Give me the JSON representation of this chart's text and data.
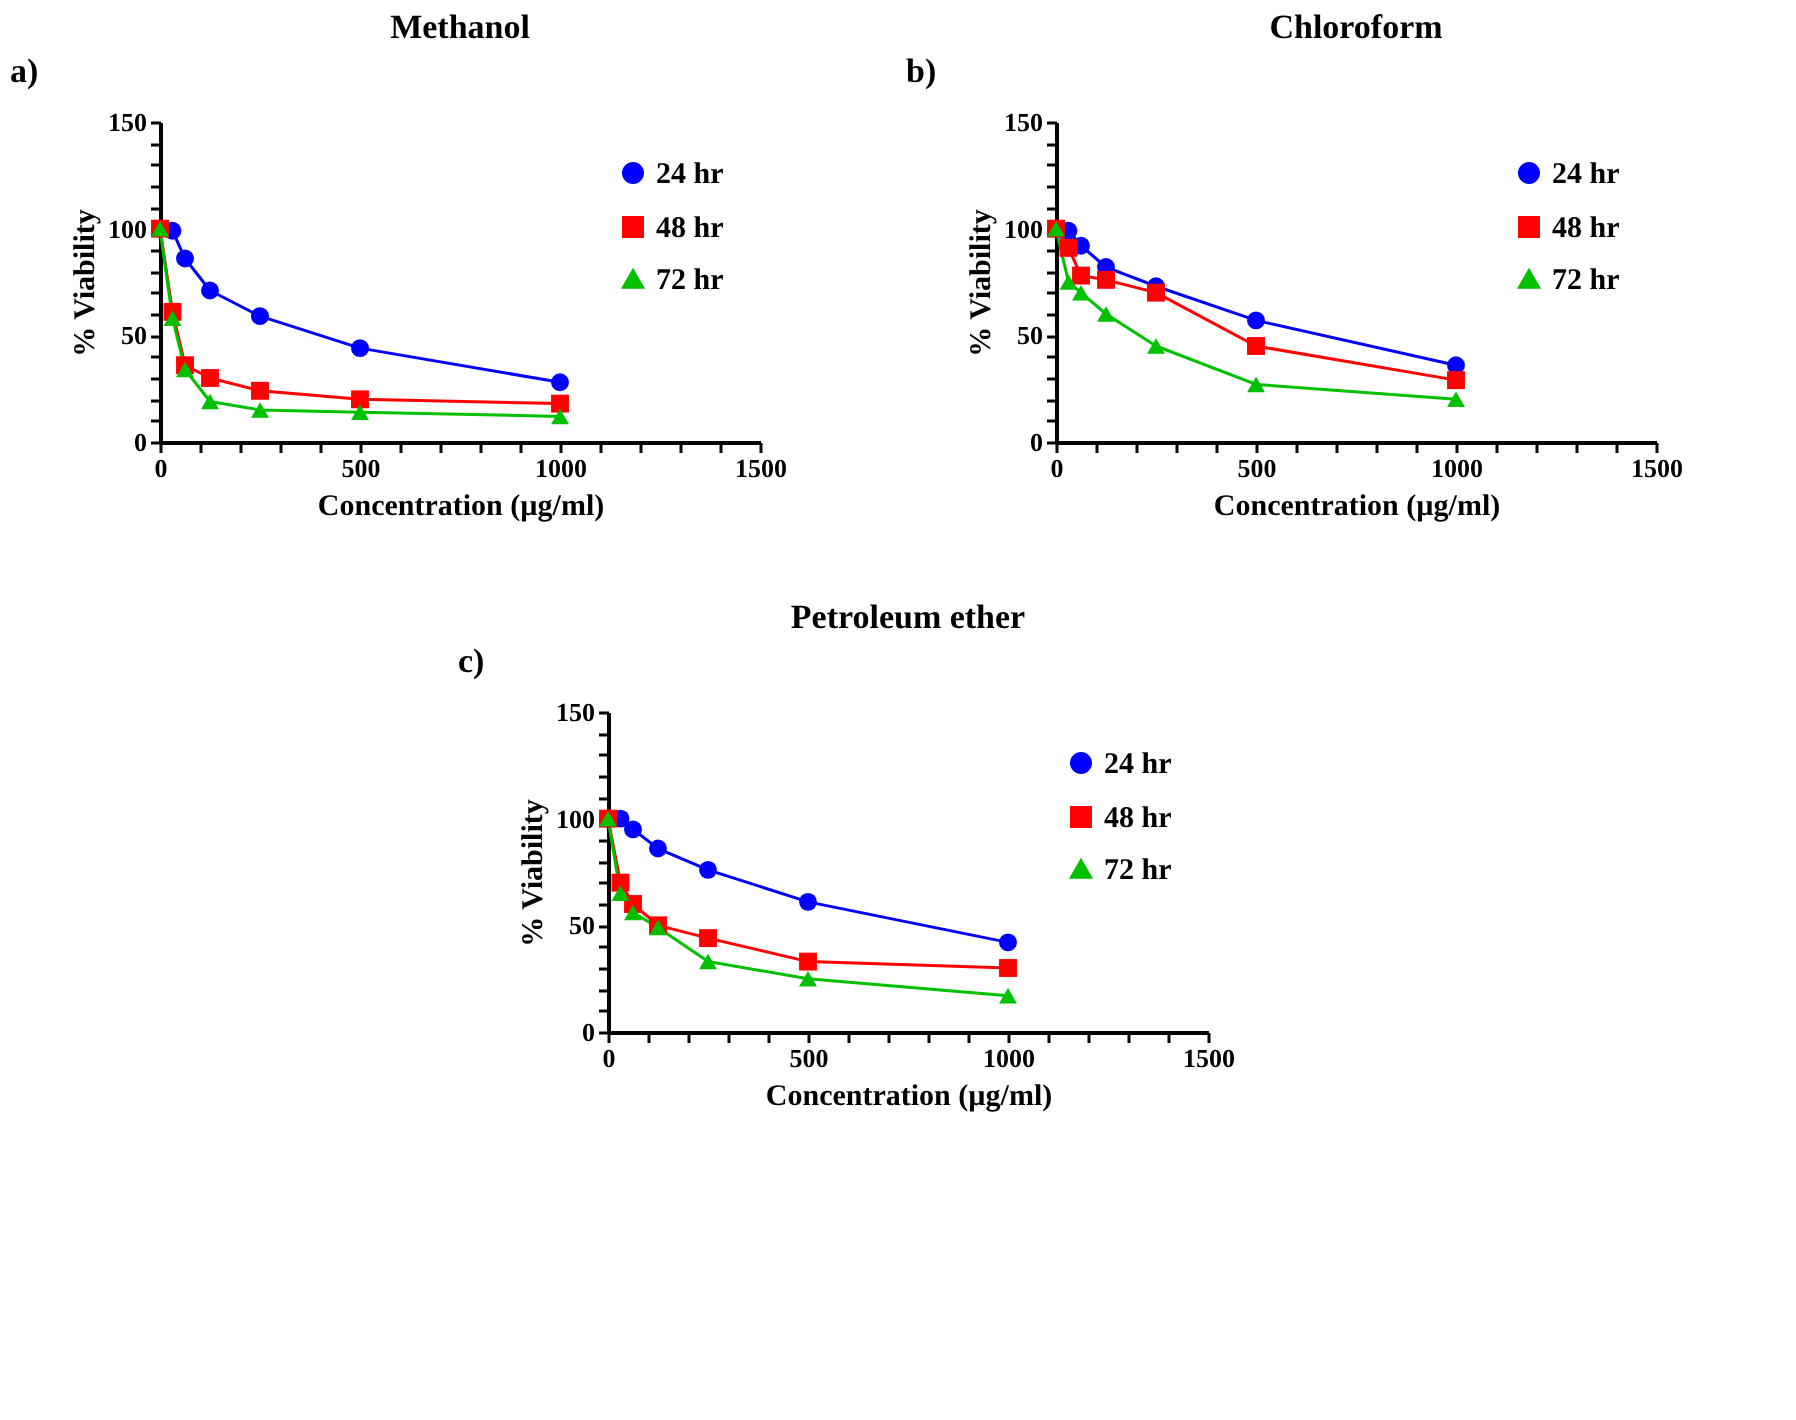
{
  "chart_data": [
    {
      "type": "line",
      "title": "Methanol",
      "xlabel": "Concentration (µg/ml)",
      "ylabel": "% Viability",
      "annotations": [
        "a)"
      ],
      "x": [
        0,
        31.25,
        62.5,
        125,
        250,
        500,
        1000
      ],
      "xlim": [
        0,
        1500
      ],
      "ylim": [
        0,
        150
      ],
      "xticks": [
        0,
        {
          "value": 100,
          "label": null
        },
        {
          "value": 200,
          "label": null
        },
        {
          "value": 300,
          "label": null
        },
        {
          "value": 400,
          "label": null
        },
        500,
        {
          "value": 600,
          "label": null
        },
        {
          "value": 700,
          "label": null
        },
        {
          "value": 800,
          "label": null
        },
        {
          "value": 900,
          "label": null
        },
        1000,
        {
          "value": 1100,
          "label": null
        },
        {
          "value": 1200,
          "label": null
        },
        {
          "value": 1300,
          "label": null
        },
        {
          "value": 1400,
          "label": null
        },
        1500
      ],
      "yticks": [
        0,
        {
          "value": 10,
          "label": null
        },
        {
          "value": 20,
          "label": null
        },
        {
          "value": 30,
          "label": null
        },
        {
          "value": 40,
          "label": null
        },
        50,
        {
          "value": 60,
          "label": null
        },
        {
          "value": 70,
          "label": null
        },
        {
          "value": 80,
          "label": null
        },
        {
          "value": 90,
          "label": null
        },
        100,
        {
          "value": 110,
          "label": null
        },
        {
          "value": 120,
          "label": null
        },
        {
          "value": 130,
          "label": null
        },
        {
          "value": 140,
          "label": null
        },
        150
      ],
      "grid": false,
      "legend": "top right",
      "line_style": "solid",
      "series": [
        {
          "name": "24 hr",
          "color": "#0000ff",
          "marker": "circle",
          "values": [
            100,
            99,
            86,
            71,
            59,
            44,
            28
          ]
        },
        {
          "name": "48 hr",
          "color": "#ff0000",
          "marker": "square",
          "values": [
            100,
            61,
            36,
            30,
            24,
            20,
            18
          ]
        },
        {
          "name": "72 hr",
          "color": "#00c000",
          "marker": "triangle",
          "values": [
            100,
            58,
            34,
            19,
            15,
            14,
            12
          ]
        }
      ]
    },
    {
      "type": "line",
      "title": "Chloroform",
      "xlabel": "Concentration (µg/ml)",
      "ylabel": "% Viability",
      "annotations": [
        "b)"
      ],
      "x": [
        0,
        31.25,
        62.5,
        125,
        250,
        500,
        1000
      ],
      "xlim": [
        0,
        1500
      ],
      "ylim": [
        0,
        150
      ],
      "xticks": [
        0,
        {
          "value": 100,
          "label": null
        },
        {
          "value": 200,
          "label": null
        },
        {
          "value": 300,
          "label": null
        },
        {
          "value": 400,
          "label": null
        },
        500,
        {
          "value": 600,
          "label": null
        },
        {
          "value": 700,
          "label": null
        },
        {
          "value": 800,
          "label": null
        },
        {
          "value": 900,
          "label": null
        },
        1000,
        {
          "value": 1100,
          "label": null
        },
        {
          "value": 1200,
          "label": null
        },
        {
          "value": 1300,
          "label": null
        },
        {
          "value": 1400,
          "label": null
        },
        1500
      ],
      "yticks": [
        0,
        {
          "value": 10,
          "label": null
        },
        {
          "value": 20,
          "label": null
        },
        {
          "value": 30,
          "label": null
        },
        {
          "value": 40,
          "label": null
        },
        50,
        {
          "value": 60,
          "label": null
        },
        {
          "value": 70,
          "label": null
        },
        {
          "value": 80,
          "label": null
        },
        {
          "value": 90,
          "label": null
        },
        100,
        {
          "value": 110,
          "label": null
        },
        {
          "value": 120,
          "label": null
        },
        {
          "value": 130,
          "label": null
        },
        {
          "value": 140,
          "label": null
        },
        150
      ],
      "grid": false,
      "legend": "top right",
      "line_style": "solid",
      "series": [
        {
          "name": "24 hr",
          "color": "#0000ff",
          "marker": "circle",
          "values": [
            100,
            99,
            92,
            82,
            73,
            57,
            36
          ]
        },
        {
          "name": "48 hr",
          "color": "#ff0000",
          "marker": "square",
          "values": [
            100,
            91,
            78,
            76,
            70,
            45,
            29
          ]
        },
        {
          "name": "72 hr",
          "color": "#00c000",
          "marker": "triangle",
          "values": [
            100,
            75,
            70,
            60,
            45,
            27,
            20
          ]
        }
      ]
    },
    {
      "type": "line",
      "title": "Petroleum ether",
      "xlabel": "Concentration (µg/ml)",
      "ylabel": "% Viability",
      "annotations": [
        "c)"
      ],
      "x": [
        0,
        31.25,
        62.5,
        125,
        250,
        500,
        1000
      ],
      "xlim": [
        0,
        1500
      ],
      "ylim": [
        0,
        150
      ],
      "xticks": [
        0,
        {
          "value": 100,
          "label": null
        },
        {
          "value": 200,
          "label": null
        },
        {
          "value": 300,
          "label": null
        },
        {
          "value": 400,
          "label": null
        },
        500,
        {
          "value": 600,
          "label": null
        },
        {
          "value": 700,
          "label": null
        },
        {
          "value": 800,
          "label": null
        },
        {
          "value": 900,
          "label": null
        },
        1000,
        {
          "value": 1100,
          "label": null
        },
        {
          "value": 1200,
          "label": null
        },
        {
          "value": 1300,
          "label": null
        },
        {
          "value": 1400,
          "label": null
        },
        1500
      ],
      "yticks": [
        0,
        {
          "value": 10,
          "label": null
        },
        {
          "value": 20,
          "label": null
        },
        {
          "value": 30,
          "label": null
        },
        {
          "value": 40,
          "label": null
        },
        50,
        {
          "value": 60,
          "label": null
        },
        {
          "value": 70,
          "label": null
        },
        {
          "value": 80,
          "label": null
        },
        {
          "value": 90,
          "label": null
        },
        100,
        {
          "value": 110,
          "label": null
        },
        {
          "value": 120,
          "label": null
        },
        {
          "value": 130,
          "label": null
        },
        {
          "value": 140,
          "label": null
        },
        150
      ],
      "grid": false,
      "legend": "top right",
      "line_style": "solid",
      "series": [
        {
          "name": "24 hr",
          "color": "#0000ff",
          "marker": "circle",
          "values": [
            100,
            100,
            95,
            86,
            76,
            61,
            42
          ]
        },
        {
          "name": "48 hr",
          "color": "#ff0000",
          "marker": "square",
          "values": [
            100,
            70,
            60,
            50,
            44,
            33,
            30
          ]
        },
        {
          "name": "72 hr",
          "color": "#00c000",
          "marker": "triangle",
          "values": [
            100,
            65,
            56,
            49,
            33,
            25,
            17
          ]
        }
      ]
    }
  ]
}
